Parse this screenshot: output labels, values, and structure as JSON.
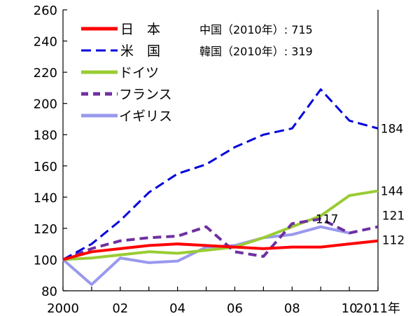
{
  "chart_data": {
    "type": "line",
    "x": [
      2000,
      2001,
      2002,
      2003,
      2004,
      2005,
      2006,
      2007,
      2008,
      2009,
      2010,
      2011
    ],
    "x_tick_labels": [
      {
        "x": 2000,
        "label": "2000"
      },
      {
        "x": 2002,
        "label": "02"
      },
      {
        "x": 2004,
        "label": "04"
      },
      {
        "x": 2006,
        "label": "06"
      },
      {
        "x": 2008,
        "label": "08"
      },
      {
        "x": 2010,
        "label": "10"
      },
      {
        "x": 2011,
        "label": "2011年"
      }
    ],
    "xlim": [
      2000,
      2011
    ],
    "ylim": [
      80,
      260
    ],
    "y_ticks": [
      80,
      100,
      120,
      140,
      160,
      180,
      200,
      220,
      240,
      260
    ],
    "grid": false,
    "legend_placement": "top-left",
    "series": [
      {
        "name": "日　本",
        "color": "#ff0000",
        "dash": "solid",
        "values": [
          100,
          105,
          107,
          109,
          110,
          109,
          108,
          107,
          108,
          108,
          110,
          112
        ],
        "end_label": "112"
      },
      {
        "name": "米　国",
        "color": "#0000dd",
        "dash": "dashed",
        "values": [
          100,
          110,
          125,
          143,
          155,
          161,
          172,
          180,
          184,
          209,
          189,
          184
        ],
        "end_label": "184"
      },
      {
        "name": "ドイツ",
        "color": "#99cc33",
        "dash": "solid",
        "values": [
          100,
          101,
          103,
          105,
          104,
          106,
          108,
          114,
          121,
          128,
          141,
          144
        ],
        "end_label": "144"
      },
      {
        "name": "フランス",
        "color": "#7030a0",
        "dash": "dashed",
        "values": [
          100,
          107,
          112,
          114,
          115,
          121,
          105,
          102,
          123,
          126,
          117,
          121
        ],
        "end_label": "121"
      },
      {
        "name": "イギリス",
        "color": "#9999ee",
        "dash": "solid",
        "values": [
          100,
          84,
          101,
          98,
          99,
          108,
          109,
          114,
          116,
          121,
          117,
          null
        ],
        "end_label": "117"
      }
    ],
    "annotations": [
      "中国（2010年）: 715",
      "韓国（2010年）: 319"
    ]
  }
}
